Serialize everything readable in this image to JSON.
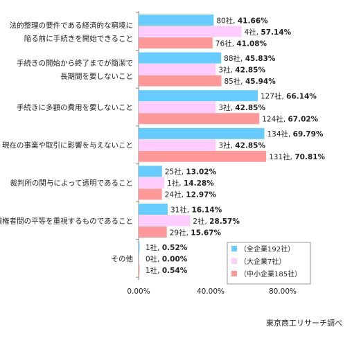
{
  "chart_data": {
    "type": "bar",
    "orientation": "horizontal",
    "categories": [
      [
        "法的整理の要件である経済的な窮境に",
        "陥る前に手続きを開始できること"
      ],
      [
        "手続きの開始から終了までが簡潔で",
        "長期間を要しないこと"
      ],
      [
        "手続きに多額の費用を要しないこと"
      ],
      [
        "現在の事業や取引に影響を与えないこと"
      ],
      [
        "裁判所の関与によって透明であること"
      ],
      [
        "債権者間の平等を重視するものであること"
      ],
      [
        "その他"
      ]
    ],
    "series": [
      {
        "name": "（全企業192社）",
        "color": "#66CCFF",
        "values": [
          41.66,
          45.83,
          66.14,
          69.79,
          13.02,
          16.14,
          0.52
        ],
        "counts": [
          "80社",
          "88社",
          "127社",
          "134社",
          "25社",
          "31社",
          "1社"
        ],
        "pct_labels": [
          "41.66%",
          "45.83%",
          "66.14%",
          "69.79%",
          "13.02%",
          "16.14%",
          "0.52%"
        ]
      },
      {
        "name": "（大企業7社）",
        "color": "#FFCCFF",
        "values": [
          57.14,
          42.85,
          42.85,
          42.85,
          14.28,
          28.57,
          0.0
        ],
        "counts": [
          "4社",
          "3社",
          "3社",
          "3社",
          "1社",
          "2社",
          "0社"
        ],
        "pct_labels": [
          "57.14%",
          "42.85%",
          "42.85%",
          "42.85%",
          "14.28%",
          "28.57%",
          "0.00%"
        ]
      },
      {
        "name": "（中小企業185社）",
        "color": "#FF9999",
        "values": [
          41.08,
          45.94,
          67.02,
          70.81,
          12.97,
          15.67,
          0.54
        ],
        "counts": [
          "76社",
          "85社",
          "124社",
          "131社",
          "24社",
          "29社",
          "1社"
        ],
        "pct_labels": [
          "41.08%",
          "45.94%",
          "67.02%",
          "70.81%",
          "12.97%",
          "15.67%",
          "0.54%"
        ]
      }
    ],
    "xlim": [
      0,
      100
    ],
    "xticks": [
      "0.00%",
      "40.00%",
      "80.00%"
    ],
    "xtick_values": [
      0,
      40,
      80
    ],
    "legend_position": "bottom-right",
    "grid": false
  },
  "source_note": "東京商工リサーチ調べ"
}
